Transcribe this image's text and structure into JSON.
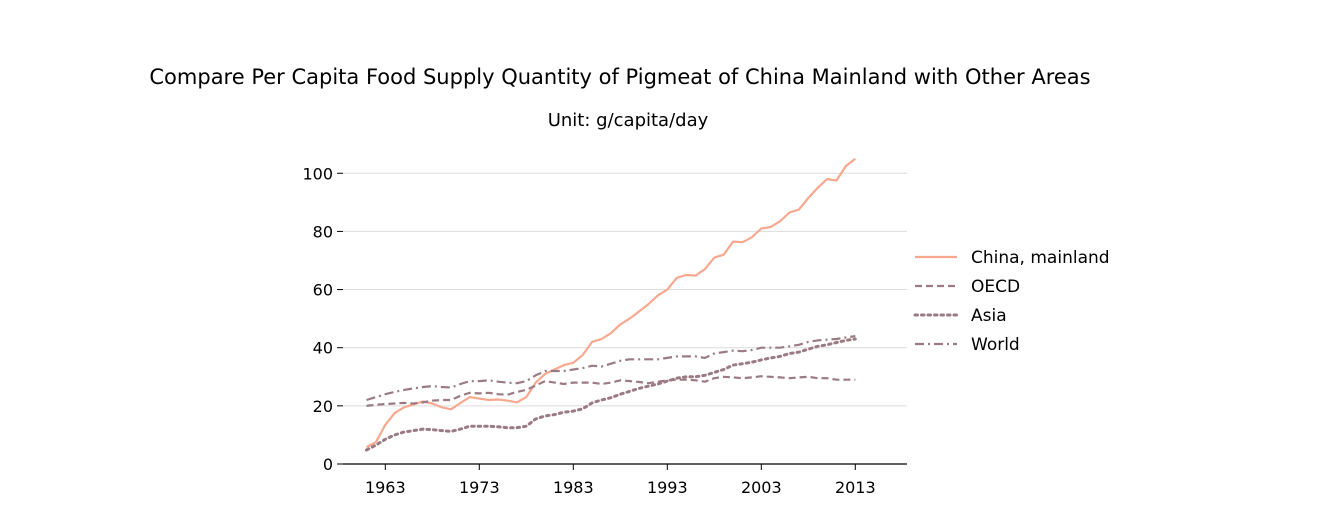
{
  "chart_data": {
    "type": "line",
    "title": "Compare Per Capita Food Supply Quantity of Pigmeat of China Mainland with Other Areas",
    "subtitle": "Unit: g/capita/day",
    "xlabel": "",
    "ylabel": "",
    "xlim": [
      1958.5,
      2018.5
    ],
    "ylim": [
      0,
      108
    ],
    "xticks": [
      1963,
      1973,
      1983,
      1993,
      2003,
      2013
    ],
    "yticks": [
      0,
      20,
      40,
      60,
      80,
      100
    ],
    "grid": "horizontal",
    "legend_position": "right",
    "x": [
      1961,
      1962,
      1963,
      1964,
      1965,
      1966,
      1967,
      1968,
      1969,
      1970,
      1971,
      1972,
      1973,
      1974,
      1975,
      1976,
      1977,
      1978,
      1979,
      1980,
      1981,
      1982,
      1983,
      1984,
      1985,
      1986,
      1987,
      1988,
      1989,
      1990,
      1991,
      1992,
      1993,
      1994,
      1995,
      1996,
      1997,
      1998,
      1999,
      2000,
      2001,
      2002,
      2003,
      2004,
      2005,
      2006,
      2007,
      2008,
      2009,
      2010,
      2011,
      2012,
      2013
    ],
    "series": [
      {
        "name": "China, mainland",
        "color": "#f7a88f",
        "style": "solid",
        "values": [
          5.8,
          7.5,
          13.5,
          17.5,
          19.5,
          20.5,
          21.5,
          20.8,
          19.5,
          18.8,
          21.0,
          23.0,
          22.5,
          22.0,
          22.2,
          21.8,
          21.2,
          23.0,
          28.0,
          31.0,
          32.5,
          34.0,
          34.8,
          37.5,
          42.0,
          43.0,
          45.0,
          48.0,
          50.0,
          52.5,
          55.0,
          58.0,
          60.0,
          64.0,
          65.0,
          64.8,
          67.0,
          71.0,
          72.0,
          76.5,
          76.3,
          78.0,
          81.0,
          81.5,
          83.5,
          86.5,
          87.5,
          91.5,
          95.0,
          98.0,
          97.5,
          102.5,
          105.0
        ]
      },
      {
        "name": "OECD",
        "color": "#9b7b83",
        "style": "dashed",
        "values": [
          20.0,
          20.4,
          20.6,
          20.8,
          21.0,
          20.8,
          21.2,
          21.8,
          22.0,
          22.0,
          23.5,
          24.5,
          24.3,
          24.5,
          24.0,
          23.8,
          24.8,
          25.5,
          27.0,
          28.5,
          28.0,
          27.5,
          28.0,
          28.0,
          28.0,
          27.5,
          28.0,
          28.8,
          28.5,
          28.2,
          27.8,
          28.3,
          28.8,
          29.0,
          29.0,
          28.8,
          28.3,
          29.5,
          30.0,
          29.8,
          29.5,
          29.8,
          30.2,
          30.0,
          29.8,
          29.5,
          29.8,
          30.0,
          29.5,
          29.5,
          29.0,
          29.0,
          29.0
        ]
      },
      {
        "name": "Asia",
        "color": "#9b7b83",
        "style": "dotted",
        "values": [
          4.8,
          6.5,
          8.5,
          10.0,
          11.0,
          11.5,
          12.0,
          11.8,
          11.5,
          11.2,
          12.0,
          13.0,
          13.0,
          13.0,
          12.8,
          12.5,
          12.5,
          13.0,
          15.5,
          16.5,
          17.0,
          17.8,
          18.2,
          19.0,
          21.0,
          22.0,
          22.8,
          24.0,
          25.0,
          26.0,
          26.8,
          27.5,
          28.5,
          29.5,
          30.0,
          30.0,
          30.5,
          31.5,
          32.5,
          34.0,
          34.5,
          35.0,
          35.8,
          36.5,
          37.0,
          38.0,
          38.5,
          39.5,
          40.5,
          41.0,
          41.8,
          42.5,
          43.0
        ]
      },
      {
        "name": "World",
        "color": "#9b7b83",
        "style": "dashdot",
        "values": [
          22.0,
          23.0,
          24.0,
          24.8,
          25.5,
          26.0,
          26.5,
          26.8,
          26.5,
          26.3,
          27.5,
          28.5,
          28.5,
          28.8,
          28.3,
          28.0,
          27.8,
          28.5,
          30.5,
          32.0,
          32.0,
          32.0,
          32.5,
          33.0,
          33.8,
          33.5,
          34.5,
          35.5,
          36.0,
          36.0,
          36.0,
          36.0,
          36.5,
          37.0,
          37.0,
          37.0,
          36.5,
          38.0,
          38.5,
          39.0,
          38.8,
          39.2,
          40.0,
          40.0,
          40.0,
          40.5,
          41.0,
          42.0,
          42.5,
          42.8,
          43.0,
          43.5,
          44.0
        ]
      }
    ]
  }
}
